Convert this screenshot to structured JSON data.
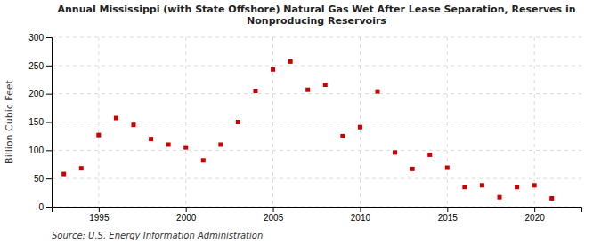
{
  "chart_data": {
    "type": "scatter",
    "title": "Annual Mississippi (with State Offshore) Natural Gas Wet After Lease Separation, Reserves in\nNonproducing Reservoirs",
    "y_label": "Billion Cubic Feet",
    "annotations": [
      "Source: U.S. Energy Information Administration"
    ],
    "x": [
      1993,
      1994,
      1995,
      1996,
      1997,
      1998,
      1999,
      2000,
      2001,
      2002,
      2003,
      2004,
      2005,
      2006,
      2007,
      2008,
      2009,
      2010,
      2011,
      2012,
      2013,
      2014,
      2015,
      2016,
      2017,
      2018,
      2019,
      2020,
      2021
    ],
    "values": [
      58,
      68,
      127,
      157,
      145,
      120,
      110,
      105,
      82,
      110,
      150,
      205,
      243,
      257,
      207,
      216,
      125,
      141,
      204,
      96,
      67,
      92,
      69,
      35,
      38,
      17,
      35,
      38,
      15
    ],
    "color": "#cc0000",
    "marker": "square",
    "xlim": [
      1992.3,
      2022.7
    ],
    "ylim": [
      0,
      300
    ],
    "xticks": [
      1995,
      2000,
      2005,
      2010,
      2015,
      2020
    ],
    "yticks": [
      0,
      50,
      100,
      150,
      200,
      250,
      300
    ],
    "grid": true
  }
}
